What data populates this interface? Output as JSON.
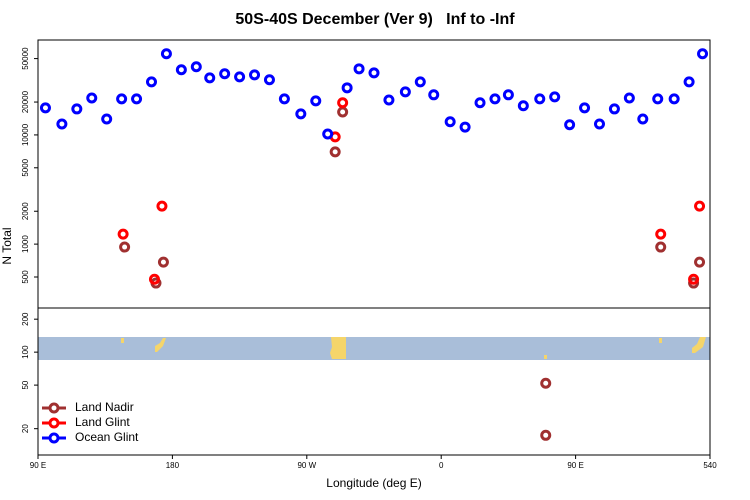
{
  "chart_data": [
    {
      "type": "scatter",
      "title": "50S-40S December (Ver 9)   Inf to -Inf",
      "y_label": "N Total",
      "log_y": true,
      "xlim": [
        90,
        540
      ],
      "ylim": [
        260,
        74000
      ],
      "yticks": [
        500,
        1000,
        2000,
        5000,
        10000,
        20000,
        50000
      ],
      "series": [
        {
          "name": "Land Nadir",
          "color": "#a03030",
          "x": [
            148,
            169,
            174,
            289,
            294,
            507,
            529,
            533
          ],
          "values": [
            940,
            440,
            684,
            7000,
            16200,
            940,
            440,
            684
          ]
        },
        {
          "name": "Land Glint",
          "color": "#ff0000",
          "x": [
            147,
            168,
            173,
            289,
            294,
            507,
            529,
            533
          ],
          "values": [
            1235,
            477,
            2230,
            9600,
            19700,
            1235,
            477,
            2230
          ]
        },
        {
          "name": "Ocean Glint",
          "color": "#0000ff",
          "x": [
            95,
            106,
            116,
            126,
            136,
            146,
            156,
            166,
            176,
            186,
            196,
            205,
            215,
            225,
            235,
            245,
            255,
            266,
            276,
            284,
            297,
            305,
            315,
            325,
            336,
            346,
            355,
            366,
            376,
            386,
            396,
            405,
            415,
            426,
            436,
            446,
            456,
            466,
            476,
            486,
            495,
            505,
            516,
            526,
            535
          ],
          "values": [
            17700,
            12600,
            17300,
            21800,
            14000,
            21400,
            21400,
            30600,
            55400,
            39500,
            42100,
            33300,
            36300,
            34000,
            35500,
            32000,
            21400,
            15600,
            20500,
            10200,
            27000,
            40300,
            37000,
            20900,
            24800,
            30600,
            23300,
            13200,
            11800,
            19700,
            21400,
            23300,
            18500,
            21400,
            22300,
            12400,
            17700,
            12600,
            17300,
            21800,
            14000,
            21400,
            21400,
            30600,
            55400
          ]
        }
      ]
    },
    {
      "type": "scatter",
      "x_label": "Longitude (deg E)",
      "log_y": true,
      "xlim": [
        90,
        540
      ],
      "ylim": [
        11.5,
        253
      ],
      "xticks": [
        {
          "value": 90,
          "label": "90 E"
        },
        180,
        {
          "value": 270,
          "label": "90 W"
        },
        {
          "value": 360,
          "label": "0"
        },
        {
          "value": 450,
          "label": "90 E"
        },
        540
      ],
      "yticks": [
        20,
        50,
        100,
        200
      ],
      "series": [
        {
          "color": "#a03030",
          "x": [
            430,
            430
          ],
          "values": [
            52,
            17.4
          ]
        }
      ]
    }
  ]
}
